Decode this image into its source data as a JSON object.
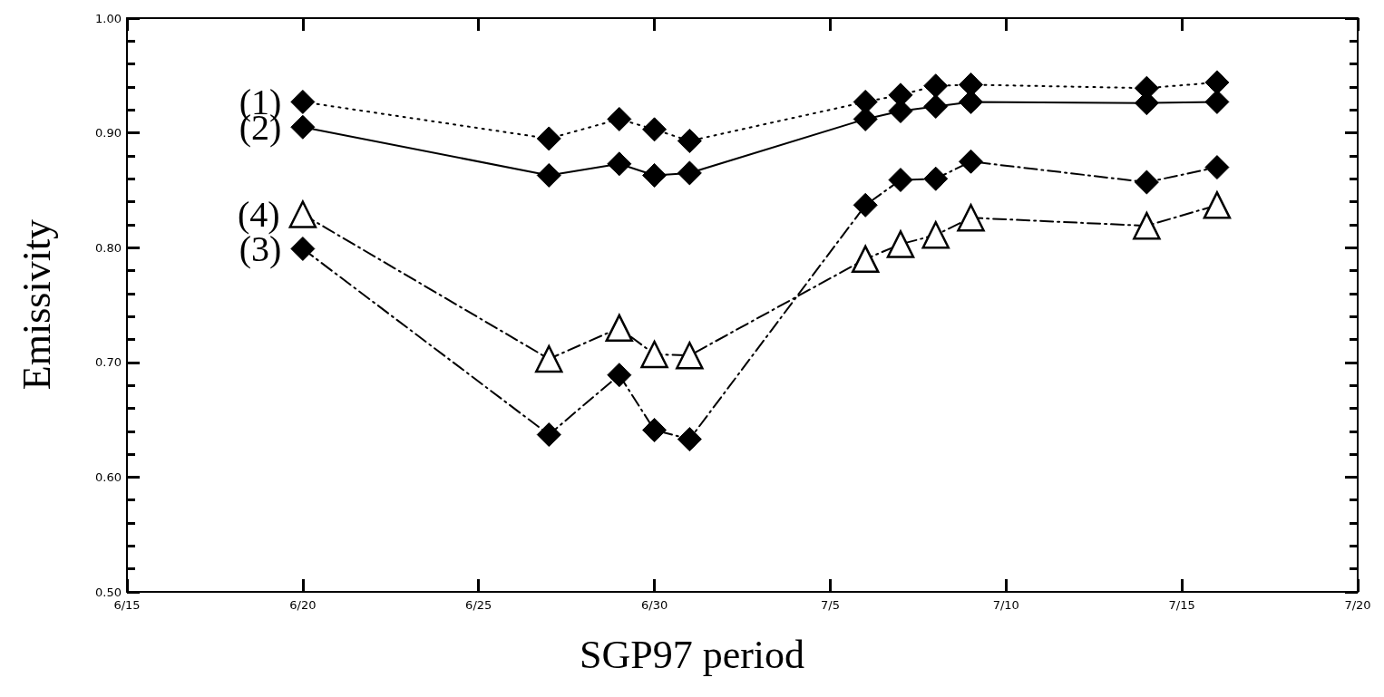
{
  "chart_data": {
    "type": "line",
    "xlabel": "SGP97 period",
    "ylabel": "Emissivity",
    "x": [
      "--06-20",
      "--06-27",
      "--06-29",
      "--06-30",
      "--07-01",
      "--07-06",
      "--07-07",
      "--07-08",
      "--07-09",
      "--07-14",
      "--07-16"
    ],
    "series": [
      {
        "name": "(1)",
        "color": "#000000",
        "marker": "diamond",
        "line_style": "dotted",
        "values": [
          0.927,
          0.895,
          0.912,
          0.903,
          0.893,
          0.927,
          0.933,
          0.941,
          0.942,
          0.939,
          0.944
        ]
      },
      {
        "name": "(2)",
        "color": "#000000",
        "marker": "diamond",
        "line_style": "solid",
        "values": [
          0.905,
          0.863,
          0.873,
          0.863,
          0.865,
          0.912,
          0.919,
          0.923,
          0.927,
          0.926,
          0.927
        ]
      },
      {
        "name": "(4)",
        "color": "#000000",
        "marker": "triangle",
        "line_style": "dashed",
        "values": [
          0.829,
          0.703,
          0.73,
          0.707,
          0.706,
          0.79,
          0.803,
          0.811,
          0.826,
          0.819,
          0.837
        ]
      },
      {
        "name": "(3)",
        "color": "#000000",
        "marker": "diamond",
        "line_style": "dashed",
        "values": [
          0.799,
          0.637,
          0.689,
          0.641,
          0.633,
          0.837,
          0.859,
          0.86,
          0.875,
          0.857,
          0.87
        ]
      }
    ],
    "xlim": [
      "--06-15",
      "--07-20"
    ],
    "xticks": [
      {
        "value": "--06-15",
        "label": "6/15"
      },
      {
        "value": "--06-20",
        "label": "6/20"
      },
      {
        "value": "--06-25",
        "label": "6/25"
      },
      {
        "value": "--06-30",
        "label": "6/30"
      },
      {
        "value": "--07-05",
        "label": "7/5"
      },
      {
        "value": "--07-10",
        "label": "7/10"
      },
      {
        "value": "--07-15",
        "label": "7/15"
      },
      {
        "value": "--07-20",
        "label": "7/20"
      }
    ],
    "ylim": [
      0.5,
      1.0
    ],
    "yticks": [
      {
        "value": 0.5,
        "label": "0.50"
      },
      {
        "value": 0.6,
        "label": "0.60"
      },
      {
        "value": 0.7,
        "label": "0.70"
      },
      {
        "value": 0.8,
        "label": "0.80"
      },
      {
        "value": 0.9,
        "label": "0.90"
      },
      {
        "value": 1.0,
        "label": "1.00"
      }
    ],
    "grid": false,
    "legend": false
  }
}
